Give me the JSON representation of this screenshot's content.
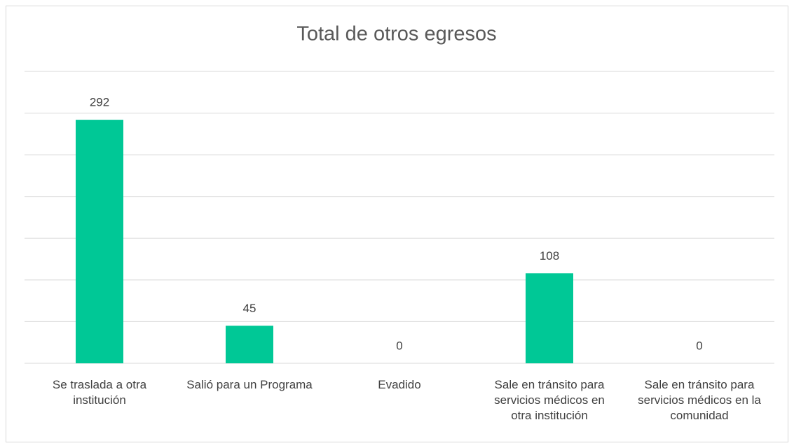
{
  "chart_data": {
    "type": "bar",
    "title": "Total de otros egresos",
    "categories": [
      "Se traslada a otra institución",
      "Salió para un Programa",
      "Evadido",
      "Sale en tránsito para servicios médicos en otra institución",
      "Sale en tránsito para servicios médicos en la comunidad"
    ],
    "values": [
      292,
      45,
      0,
      108,
      0
    ],
    "color": "#00c896",
    "ylim": [
      0,
      350
    ],
    "yticks": [
      0,
      50,
      100,
      150,
      200,
      250,
      300,
      350
    ],
    "grid": true
  }
}
